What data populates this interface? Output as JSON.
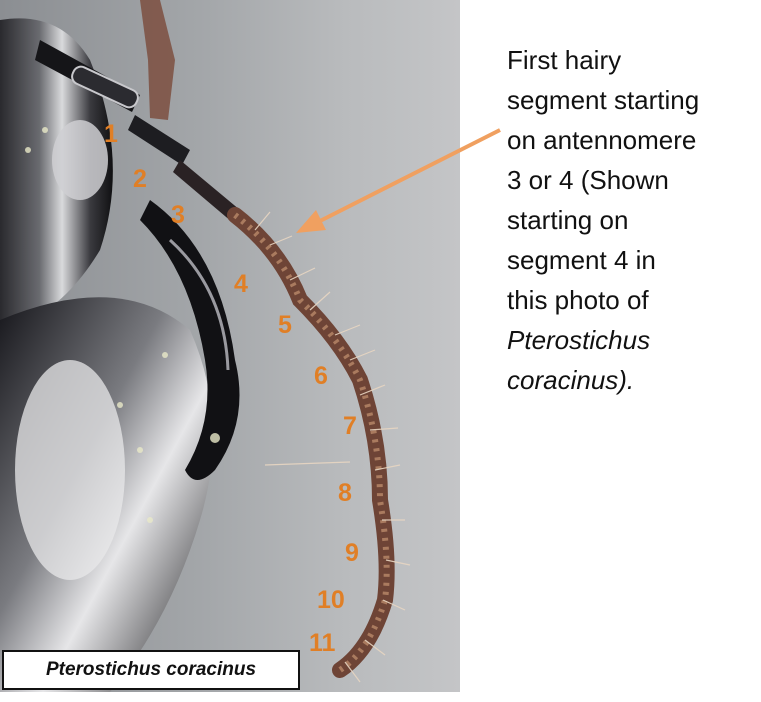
{
  "photo": {
    "alt": "Close-up of a shiny black beetle's antenna with numbered segments",
    "segment_labels": [
      "1",
      "2",
      "3",
      "4",
      "5",
      "6",
      "7",
      "8",
      "9",
      "10",
      "11"
    ]
  },
  "caption": {
    "text": "Pterostichus coracinus"
  },
  "annotation": {
    "line1": "First hairy",
    "line2": "segment starting",
    "line3": "on antennomere",
    "line4": "3 or 4 (Shown",
    "line5": "starting on",
    "line6": "segment 4 in",
    "line7": "this photo of",
    "line8": "Pterostichus",
    "line9": "coracinus)."
  },
  "colors": {
    "label_orange": "#e07f26",
    "arrow_orange": "#f0a060"
  }
}
